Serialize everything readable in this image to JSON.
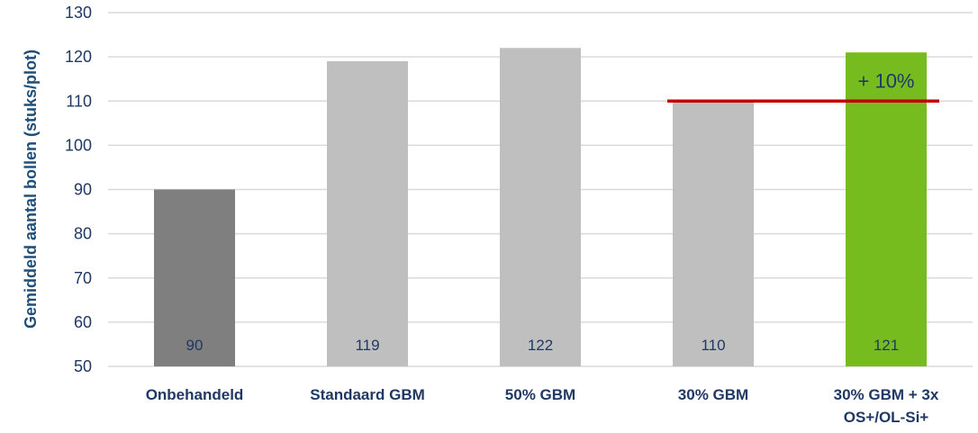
{
  "chart_data": {
    "type": "bar",
    "categories": [
      [
        "Onbehandeld"
      ],
      [
        "Standaard GBM"
      ],
      [
        "50% GBM"
      ],
      [
        "30% GBM"
      ],
      [
        "30% GBM + 3x",
        "OS+/OL-Si+"
      ]
    ],
    "values": [
      90,
      119,
      122,
      110,
      121
    ],
    "data_labels": [
      "90",
      "119",
      "122",
      "110",
      "121"
    ],
    "bar_colors": [
      "#7f7f7f",
      "#bfbfbf",
      "#bfbfbf",
      "#bfbfbf",
      "#77bc1f"
    ],
    "ylabel": "Gemiddeld aantal bollen (stuks/plot)",
    "xlabel": "",
    "ylim": [
      50,
      130
    ],
    "yticks": [
      50,
      60,
      70,
      80,
      90,
      100,
      110,
      120,
      130
    ],
    "grid": true,
    "legend": "none",
    "reference_line": {
      "value": 110,
      "from_category": 3,
      "to_category": 4,
      "color": "#c00000"
    },
    "annotation": {
      "text": "+ 10%",
      "category": 4
    },
    "colors": {
      "text": "#1f3864",
      "ylabel": "#1f4e79",
      "grid": "#d9d9d9"
    }
  }
}
